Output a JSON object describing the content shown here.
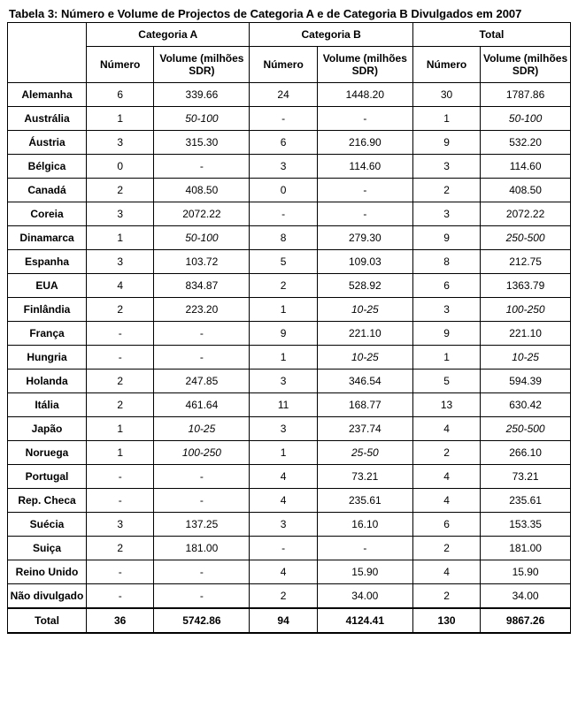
{
  "caption": "Tabela 3: Número e Volume de Projectos de Categoria A e de Categoria B Divulgados em 2007",
  "columns": {
    "groups": [
      "Categoria A",
      "Categoria B",
      "Total"
    ],
    "sub_numero": "Número",
    "sub_volume": "Volume (milhões SDR)"
  },
  "rows": [
    {
      "label": "Alemanha",
      "a_n": "6",
      "a_v": "339.66",
      "b_n": "24",
      "b_v": "1448.20",
      "t_n": "30",
      "t_v": "1787.86"
    },
    {
      "label": "Austrália",
      "a_n": "1",
      "a_v": "50-100",
      "a_v_i": true,
      "b_n": "-",
      "b_v": "-",
      "t_n": "1",
      "t_v": "50-100",
      "t_v_i": true
    },
    {
      "label": "Áustria",
      "a_n": "3",
      "a_v": "315.30",
      "b_n": "6",
      "b_v": "216.90",
      "t_n": "9",
      "t_v": "532.20"
    },
    {
      "label": "Bélgica",
      "a_n": "0",
      "a_v": "-",
      "b_n": "3",
      "b_v": "114.60",
      "t_n": "3",
      "t_v": "114.60"
    },
    {
      "label": "Canadá",
      "a_n": "2",
      "a_v": "408.50",
      "b_n": "0",
      "b_v": "-",
      "t_n": "2",
      "t_v": "408.50"
    },
    {
      "label": "Coreia",
      "a_n": "3",
      "a_v": "2072.22",
      "b_n": "-",
      "b_v": "-",
      "t_n": "3",
      "t_v": "2072.22"
    },
    {
      "label": "Dinamarca",
      "a_n": "1",
      "a_v": "50-100",
      "a_v_i": true,
      "b_n": "8",
      "b_v": "279.30",
      "t_n": "9",
      "t_v": "250-500",
      "t_v_i": true
    },
    {
      "label": "Espanha",
      "a_n": "3",
      "a_v": "103.72",
      "b_n": "5",
      "b_v": "109.03",
      "t_n": "8",
      "t_v": "212.75"
    },
    {
      "label": "EUA",
      "a_n": "4",
      "a_v": "834.87",
      "b_n": "2",
      "b_v": "528.92",
      "t_n": "6",
      "t_v": "1363.79"
    },
    {
      "label": "Finlândia",
      "a_n": "2",
      "a_v": "223.20",
      "b_n": "1",
      "b_v": "10-25",
      "b_v_i": true,
      "t_n": "3",
      "t_v": "100-250",
      "t_v_i": true
    },
    {
      "label": "França",
      "a_n": "-",
      "a_v": "-",
      "b_n": "9",
      "b_v": "221.10",
      "t_n": "9",
      "t_v": "221.10"
    },
    {
      "label": "Hungria",
      "a_n": "-",
      "a_v": "-",
      "b_n": "1",
      "b_v": "10-25",
      "b_v_i": true,
      "t_n": "1",
      "t_v": "10-25",
      "t_v_i": true
    },
    {
      "label": "Holanda",
      "a_n": "2",
      "a_v": "247.85",
      "b_n": "3",
      "b_v": "346.54",
      "t_n": "5",
      "t_v": "594.39"
    },
    {
      "label": "Itália",
      "a_n": "2",
      "a_v": "461.64",
      "b_n": "11",
      "b_v": "168.77",
      "t_n": "13",
      "t_v": "630.42"
    },
    {
      "label": "Japão",
      "a_n": "1",
      "a_v": "10-25",
      "a_v_i": true,
      "b_n": "3",
      "b_v": "237.74",
      "t_n": "4",
      "t_v": "250-500",
      "t_v_i": true
    },
    {
      "label": "Noruega",
      "a_n": "1",
      "a_v": "100-250",
      "a_v_i": true,
      "b_n": "1",
      "b_v": "25-50",
      "b_v_i": true,
      "t_n": "2",
      "t_v": "266.10"
    },
    {
      "label": "Portugal",
      "a_n": "-",
      "a_v": "-",
      "b_n": "4",
      "b_v": "73.21",
      "t_n": "4",
      "t_v": "73.21"
    },
    {
      "label": "Rep. Checa",
      "a_n": "-",
      "a_v": "-",
      "b_n": "4",
      "b_v": "235.61",
      "t_n": "4",
      "t_v": "235.61"
    },
    {
      "label": "Suécia",
      "a_n": "3",
      "a_v": "137.25",
      "b_n": "3",
      "b_v": "16.10",
      "t_n": "6",
      "t_v": "153.35"
    },
    {
      "label": "Suiça",
      "a_n": "2",
      "a_v": "181.00",
      "b_n": "-",
      "b_v": "-",
      "t_n": "2",
      "t_v": "181.00"
    },
    {
      "label": "Reino Unido",
      "a_n": "-",
      "a_v": "-",
      "b_n": "4",
      "b_v": "15.90",
      "t_n": "4",
      "t_v": "15.90"
    },
    {
      "label": "Não divulgado",
      "a_n": "-",
      "a_v": "-",
      "b_n": "2",
      "b_v": "34.00",
      "t_n": "2",
      "t_v": "34.00"
    }
  ],
  "total": {
    "label": "Total",
    "a_n": "36",
    "a_v": "5742.86",
    "b_n": "94",
    "b_v": "4124.41",
    "t_n": "130",
    "t_v": "9867.26"
  },
  "colors": {
    "border": "#000000",
    "background": "#ffffff",
    "text": "#000000"
  },
  "font_family": "Arial",
  "font_size_pt": 12
}
